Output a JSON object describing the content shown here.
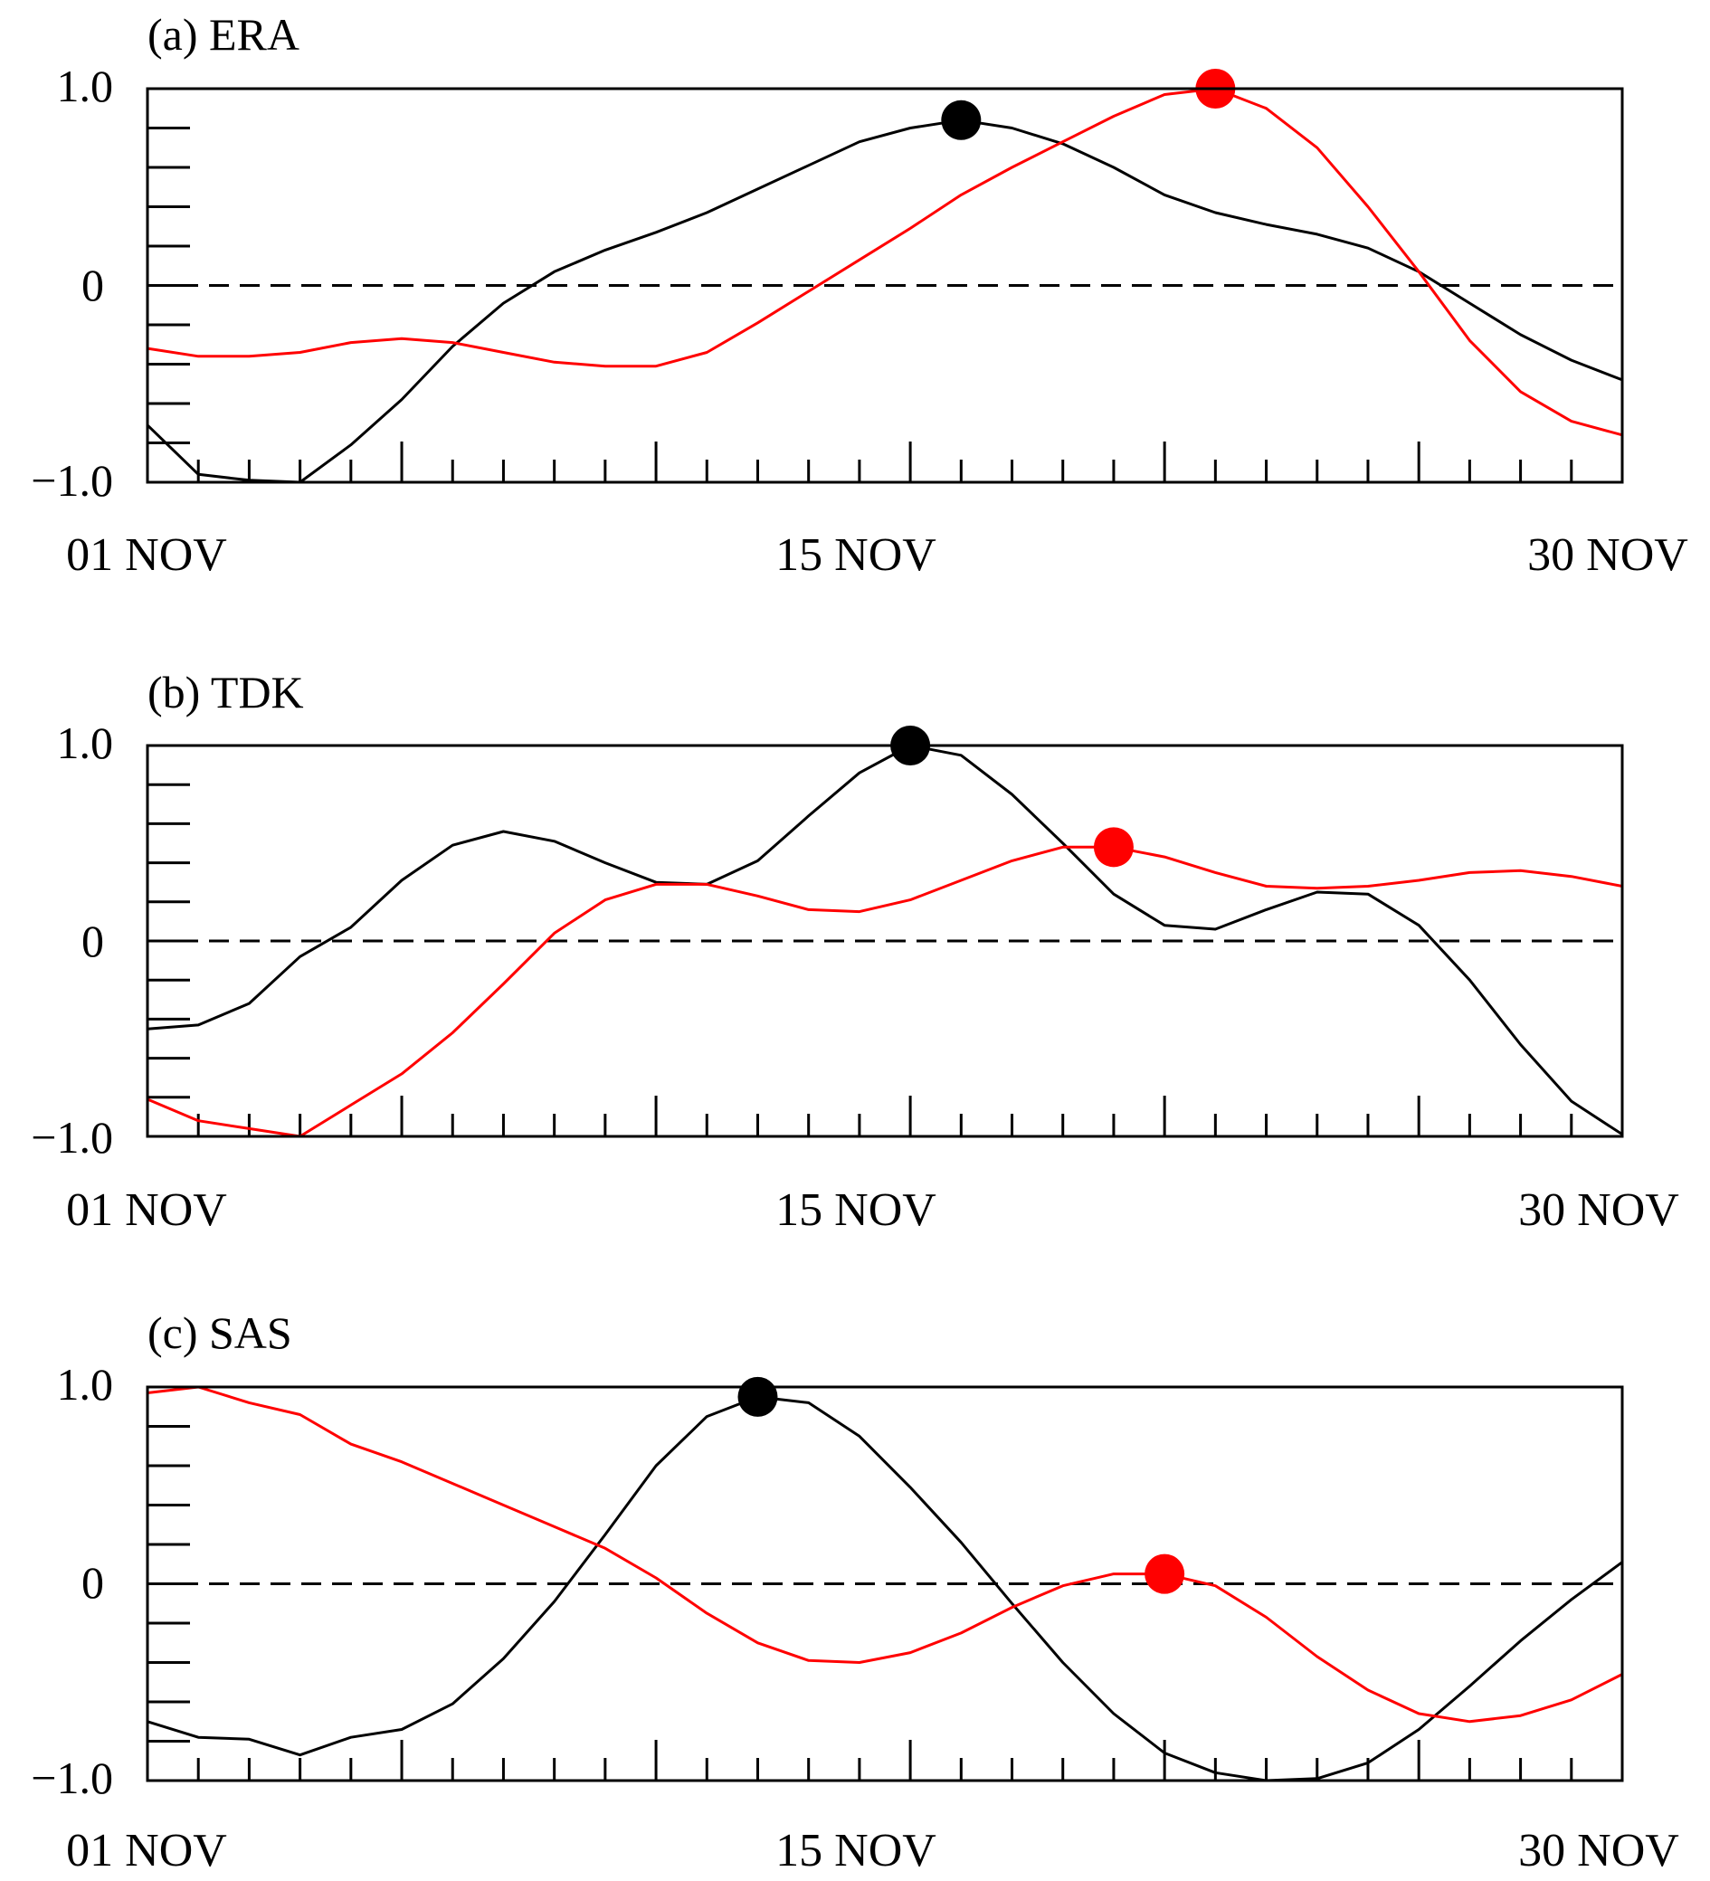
{
  "colors": {
    "series_black": "#000000",
    "series_red": "#ff0000",
    "frame": "#000000"
  },
  "chart_data": [
    {
      "type": "line",
      "title": "(a) ERA",
      "x": [
        1,
        2,
        3,
        4,
        5,
        6,
        7,
        8,
        9,
        10,
        11,
        12,
        13,
        14,
        15,
        16,
        17,
        18,
        19,
        20,
        21,
        22,
        23,
        24,
        25,
        26,
        27,
        28,
        29,
        30
      ],
      "xlim": [
        1,
        30
      ],
      "ylim": [
        -1.0,
        1.0
      ],
      "y_tick_labels": [
        "1.0",
        "0",
        "−1.0"
      ],
      "x_tick_labels": [
        "01 NOV",
        "15 NOV",
        "30 NOV"
      ],
      "zero_line": "dashed",
      "series": [
        {
          "color": "#000000",
          "values": [
            -0.71,
            -0.96,
            -0.99,
            -1.0,
            -0.81,
            -0.58,
            -0.31,
            -0.09,
            0.07,
            0.18,
            0.27,
            0.37,
            0.49,
            0.61,
            0.73,
            0.8,
            0.84,
            0.8,
            0.72,
            0.6,
            0.46,
            0.37,
            0.31,
            0.26,
            0.19,
            0.07,
            -0.09,
            -0.25,
            -0.38,
            -0.48
          ],
          "peak": {
            "x": 17,
            "y": 0.84
          }
        },
        {
          "color": "#ff0000",
          "values": [
            -0.32,
            -0.36,
            -0.36,
            -0.34,
            -0.29,
            -0.27,
            -0.29,
            -0.34,
            -0.39,
            -0.41,
            -0.41,
            -0.34,
            -0.19,
            -0.03,
            0.13,
            0.29,
            0.46,
            0.6,
            0.73,
            0.86,
            0.97,
            1.0,
            0.9,
            0.7,
            0.4,
            0.07,
            -0.28,
            -0.54,
            -0.69,
            -0.76
          ],
          "peak": {
            "x": 22,
            "y": 1.0
          }
        }
      ]
    },
    {
      "type": "line",
      "title": "(b) TDK",
      "x": [
        1,
        2,
        3,
        4,
        5,
        6,
        7,
        8,
        9,
        10,
        11,
        12,
        13,
        14,
        15,
        16,
        17,
        18,
        19,
        20,
        21,
        22,
        23,
        24,
        25,
        26,
        27,
        28,
        29,
        30
      ],
      "xlim": [
        1,
        30
      ],
      "ylim": [
        -1.0,
        1.0
      ],
      "y_tick_labels": [
        "1.0",
        "0",
        "−1.0"
      ],
      "x_tick_labels": [
        "01 NOV",
        "15 NOV",
        "30 NOV"
      ],
      "zero_line": "dashed",
      "series": [
        {
          "color": "#000000",
          "values": [
            -0.45,
            -0.43,
            -0.32,
            -0.08,
            0.07,
            0.31,
            0.49,
            0.56,
            0.51,
            0.4,
            0.3,
            0.29,
            0.41,
            0.64,
            0.86,
            1.0,
            0.95,
            0.75,
            0.5,
            0.24,
            0.08,
            0.06,
            0.16,
            0.25,
            0.24,
            0.08,
            -0.2,
            -0.53,
            -0.82,
            -0.99
          ],
          "peak": {
            "x": 16,
            "y": 1.0
          }
        },
        {
          "color": "#ff0000",
          "values": [
            -0.81,
            -0.92,
            -0.96,
            -1.0,
            -0.84,
            -0.68,
            -0.47,
            -0.22,
            0.04,
            0.21,
            0.29,
            0.29,
            0.23,
            0.16,
            0.15,
            0.21,
            0.31,
            0.41,
            0.48,
            0.48,
            0.43,
            0.35,
            0.28,
            0.27,
            0.28,
            0.31,
            0.35,
            0.36,
            0.33,
            0.28
          ],
          "peak": {
            "x": 20,
            "y": 0.48
          }
        }
      ]
    },
    {
      "type": "line",
      "title": "(c) SAS",
      "x": [
        1,
        2,
        3,
        4,
        5,
        6,
        7,
        8,
        9,
        10,
        11,
        12,
        13,
        14,
        15,
        16,
        17,
        18,
        19,
        20,
        21,
        22,
        23,
        24,
        25,
        26,
        27,
        28,
        29,
        30
      ],
      "xlim": [
        1,
        30
      ],
      "ylim": [
        -1.0,
        1.0
      ],
      "y_tick_labels": [
        "1.0",
        "0",
        "−1.0"
      ],
      "x_tick_labels": [
        "01 NOV",
        "15 NOV",
        "30 NOV"
      ],
      "zero_line": "dashed",
      "series": [
        {
          "color": "#000000",
          "values": [
            -0.7,
            -0.78,
            -0.79,
            -0.87,
            -0.78,
            -0.74,
            -0.61,
            -0.38,
            -0.09,
            0.25,
            0.6,
            0.85,
            0.95,
            0.92,
            0.75,
            0.49,
            0.21,
            -0.1,
            -0.4,
            -0.66,
            -0.86,
            -0.96,
            -1.0,
            -0.99,
            -0.91,
            -0.74,
            -0.52,
            -0.29,
            -0.08,
            0.11
          ],
          "peak": {
            "x": 13,
            "y": 0.95
          }
        },
        {
          "color": "#ff0000",
          "values": [
            0.97,
            1.0,
            0.92,
            0.86,
            0.71,
            0.62,
            0.51,
            0.4,
            0.29,
            0.18,
            0.03,
            -0.15,
            -0.3,
            -0.39,
            -0.4,
            -0.35,
            -0.25,
            -0.12,
            -0.01,
            0.05,
            0.05,
            -0.01,
            -0.17,
            -0.37,
            -0.54,
            -0.66,
            -0.7,
            -0.67,
            -0.59,
            -0.46
          ],
          "peak": {
            "x": 21,
            "y": 0.05
          }
        }
      ]
    }
  ]
}
